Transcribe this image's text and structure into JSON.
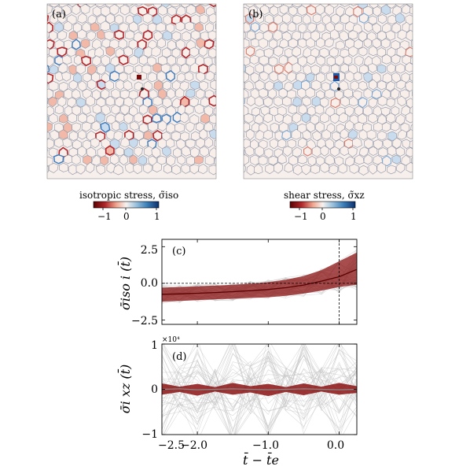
{
  "figure": {
    "panel_a": {
      "label": "(a)"
    },
    "panel_b": {
      "label": "(b)"
    },
    "colorbar_left": {
      "title": "isotropic stress, σ̃iso",
      "ticks": [
        "−1",
        "0",
        "1"
      ]
    },
    "colorbar_right": {
      "title": "shear stress, σ̃xz",
      "ticks": [
        "−1",
        "0",
        "1"
      ]
    },
    "colors": {
      "negative": "#7a0a0a",
      "neutral": "#f7f1ee",
      "positive": "#1f5aa6",
      "cell_edge": "#8d95a6"
    }
  },
  "chart_data": [
    {
      "type": "line",
      "panel_label": "(c)",
      "ylabel": "σ̄iso i (t̄)",
      "x_ticks": [
        "−2.5",
        "−2.0",
        "−1.0",
        "0.0"
      ],
      "y_ticks": [
        "2.5",
        "0.0",
        "−2.5"
      ],
      "xlim": [
        -2.5,
        0.25
      ],
      "ylim": [
        -2.8,
        3.0
      ],
      "reference_lines": {
        "y": 0.0,
        "x": 0.0
      },
      "x": [
        -2.5,
        -2.25,
        -2.0,
        -1.75,
        -1.5,
        -1.25,
        -1.0,
        -0.75,
        -0.5,
        -0.25,
        0.0,
        0.25
      ],
      "series": [
        {
          "values": [
            -0.75,
            -0.72,
            -0.68,
            -0.63,
            -0.57,
            -0.5,
            -0.42,
            -0.3,
            -0.12,
            0.15,
            0.45,
            0.95
          ],
          "band_low": [
            -1.25,
            -1.2,
            -1.15,
            -1.1,
            -1.05,
            -1.0,
            -0.95,
            -0.85,
            -0.7,
            -0.5,
            -0.25,
            -0.1
          ],
          "band_high": [
            -0.3,
            -0.25,
            -0.2,
            -0.15,
            -0.1,
            -0.02,
            0.08,
            0.25,
            0.5,
            0.9,
            1.5,
            2.1
          ]
        }
      ]
    },
    {
      "type": "line",
      "panel_label": "(d)",
      "ylabel": "σ̄i xz (t̄)",
      "multiplier": "×10⁴",
      "xlabel": "t̄ − t̄e",
      "x_ticks": [
        "−2.5",
        "−2.0",
        "−1.0",
        "0.0"
      ],
      "y_ticks": [
        "1",
        "0",
        "−1"
      ],
      "xlim": [
        -2.5,
        0.25
      ],
      "ylim": [
        -1.0,
        1.0
      ],
      "x": [
        -2.5,
        -2.25,
        -2.0,
        -1.75,
        -1.5,
        -1.25,
        -1.0,
        -0.75,
        -0.5,
        -0.25,
        0.0,
        0.25
      ],
      "series": [
        {
          "values": [
            0.0,
            0.01,
            -0.01,
            0.0,
            0.01,
            0.0,
            -0.01,
            0.0,
            0.01,
            0.0,
            -0.01,
            0.0
          ],
          "band_low": [
            -0.12,
            -0.06,
            -0.14,
            -0.05,
            -0.12,
            -0.07,
            -0.15,
            -0.06,
            -0.13,
            -0.05,
            -0.12,
            -0.08
          ],
          "band_high": [
            0.13,
            0.06,
            0.12,
            0.05,
            0.14,
            0.07,
            0.12,
            0.05,
            0.13,
            0.06,
            0.14,
            0.07
          ]
        }
      ]
    }
  ]
}
